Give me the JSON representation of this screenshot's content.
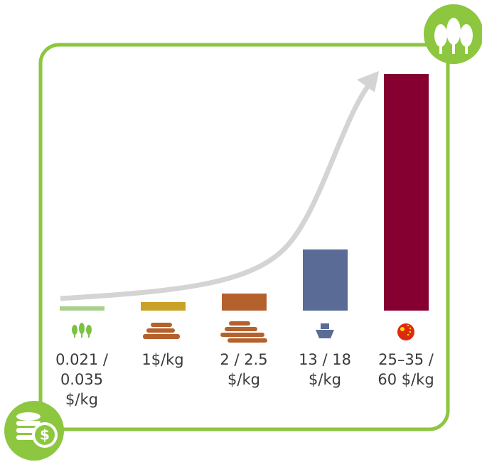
{
  "items": [
    {
      "lines": [
        "0.021 /",
        "0.035",
        "$/kg"
      ]
    },
    {
      "lines": [
        "1$/kg"
      ]
    },
    {
      "lines": [
        "2 / 2.5",
        "$/kg"
      ]
    },
    {
      "lines": [
        "13 / 18",
        "$/kg"
      ]
    },
    {
      "lines": [
        "25–35 /",
        "60 $/kg"
      ]
    }
  ]
}
